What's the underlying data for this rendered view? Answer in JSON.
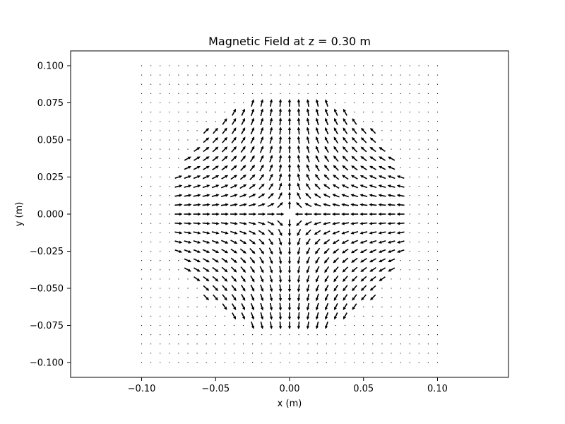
{
  "chart_data": {
    "type": "quiver",
    "title": "Magnetic Field at z = 0.30 m",
    "xlabel": "x (m)",
    "ylabel": "y (m)",
    "xlim": [
      -0.148,
      0.148
    ],
    "ylim": [
      -0.11,
      0.11
    ],
    "xticks": [
      -0.1,
      -0.05,
      0.0,
      0.05,
      0.1
    ],
    "xtick_labels": [
      "−0.10",
      "−0.05",
      "0.00",
      "0.05",
      "0.10"
    ],
    "yticks": [
      0.1,
      0.075,
      0.05,
      0.025,
      0.0,
      -0.025,
      -0.05,
      -0.075,
      -0.1
    ],
    "ytick_labels": [
      "0.100",
      "0.075",
      "0.050",
      "0.025",
      "0.000",
      "−0.025",
      "−0.050",
      "−0.075",
      "−0.100"
    ],
    "grid": false,
    "legend": "none",
    "field": {
      "x_range": [
        -0.1,
        0.1
      ],
      "y_range": [
        -0.1,
        0.1
      ],
      "samples_per_axis": 33,
      "active_radius": 0.08,
      "pattern": "quadrupole: arrows point outward along ±y axis and inward along ±x axis; dots (near-zero vectors) outside radius"
    },
    "colors": {
      "arrow": "#000000",
      "frame": "#000000",
      "background": "#ffffff"
    }
  }
}
